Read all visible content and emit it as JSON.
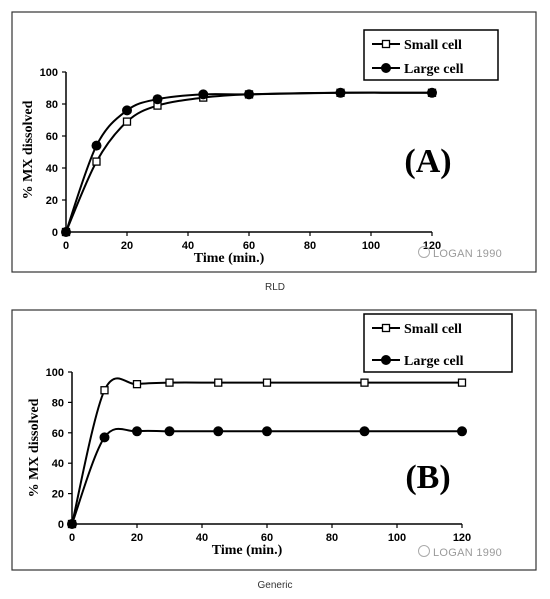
{
  "chart_data": [
    {
      "type": "line",
      "label": "(A)",
      "xlabel": "Time (min.)",
      "ylabel": "% MX dissolved",
      "xlim": [
        0,
        120
      ],
      "ylim": [
        0,
        100
      ],
      "xticks": [
        "0",
        "20",
        "40",
        "60",
        "80",
        "100",
        "120"
      ],
      "yticks": [
        "0",
        "20",
        "40",
        "60",
        "80",
        "100"
      ],
      "legend": "top-right",
      "series": [
        {
          "name": "Small cell",
          "marker": "open-square",
          "x": [
            0,
            10,
            20,
            30,
            45,
            60,
            90,
            120
          ],
          "y": [
            0,
            44,
            69,
            79,
            84,
            86,
            87,
            87
          ]
        },
        {
          "name": "Large cell",
          "marker": "filled-circle",
          "x": [
            0,
            10,
            20,
            30,
            45,
            60,
            90,
            120
          ],
          "y": [
            0,
            54,
            76,
            83,
            86,
            86,
            87,
            87
          ]
        }
      ],
      "watermark": "LOGAN 1990",
      "caption": "RLD"
    },
    {
      "type": "line",
      "label": "(B)",
      "xlabel": "Time (min.)",
      "ylabel": "% MX dissolved",
      "xlim": [
        0,
        120
      ],
      "ylim": [
        0,
        100
      ],
      "xticks": [
        "0",
        "20",
        "40",
        "60",
        "80",
        "100",
        "120"
      ],
      "yticks": [
        "0",
        "20",
        "40",
        "60",
        "80",
        "100"
      ],
      "legend": "top-right",
      "series": [
        {
          "name": "Small cell",
          "marker": "open-square",
          "x": [
            0,
            10,
            20,
            30,
            45,
            60,
            90,
            120
          ],
          "y": [
            0,
            88,
            92,
            93,
            93,
            93,
            93,
            93
          ]
        },
        {
          "name": "Large cell",
          "marker": "filled-circle",
          "x": [
            0,
            10,
            20,
            30,
            45,
            60,
            90,
            120
          ],
          "y": [
            0,
            57,
            61,
            61,
            61,
            61,
            61,
            61
          ]
        }
      ],
      "watermark": "LOGAN 1990",
      "caption": "Generic"
    }
  ]
}
